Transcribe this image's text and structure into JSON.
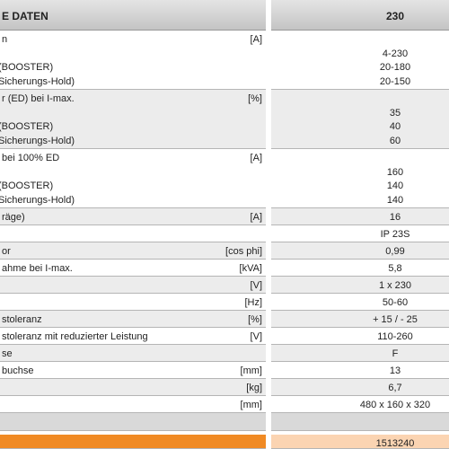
{
  "header": {
    "title": "E DATEN",
    "model": "230"
  },
  "rows": [
    {
      "label": "n",
      "unit": "[A]",
      "sub": [
        "(BOOSTER)",
        "Sicherungs-Hold)"
      ],
      "values": [
        "4-230",
        "20-180",
        "20-150"
      ]
    },
    {
      "label": "r (ED) bei I-max.",
      "unit": "[%]",
      "sub": [
        "(BOOSTER)",
        "Sicherungs-Hold)"
      ],
      "values": [
        "35",
        "40",
        "60"
      ]
    },
    {
      "label": "bei 100% ED",
      "unit": "[A]",
      "sub": [
        "(BOOSTER)",
        "Sicherungs-Hold)"
      ],
      "values": [
        "160",
        "140",
        "140"
      ]
    },
    {
      "label": "räge)",
      "unit": "[A]",
      "value": "16"
    },
    {
      "value": "IP 23S"
    },
    {
      "label": "or",
      "unit": "[cos phi]",
      "value": "0,99"
    },
    {
      "label": "ahme bei I-max.",
      "unit": "[kVA]",
      "value": "5,8"
    },
    {
      "unit": "[V]",
      "value": "1 x 230"
    },
    {
      "unit": "[Hz]",
      "value": "50-60"
    },
    {
      "label": "stoleranz",
      "unit": "[%]",
      "value": "+ 15 / - 25"
    },
    {
      "label": "stoleranz mit reduzierter Leistung",
      "unit": "[V]",
      "value": "110-260"
    },
    {
      "label": "se",
      "value": "F"
    },
    {
      "label": "buchse",
      "unit": "[mm]",
      "value": "13"
    },
    {
      "unit": "[kg]",
      "value": "6,7"
    },
    {
      "unit": "[mm]",
      "value": "480 x 160 x 320"
    }
  ],
  "footer": {
    "article": "1513240"
  }
}
